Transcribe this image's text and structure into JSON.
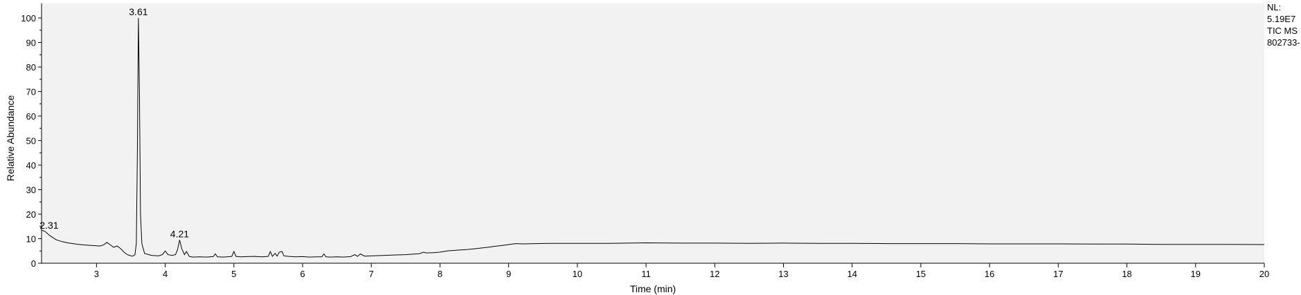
{
  "chart_data": {
    "type": "line",
    "xlabel": "Time (min)",
    "ylabel": "Relative Abundance",
    "xlim": [
      2.2,
      20
    ],
    "ylim": [
      0,
      100
    ],
    "x_ticks": [
      3,
      4,
      5,
      6,
      7,
      8,
      9,
      10,
      11,
      12,
      13,
      14,
      15,
      16,
      17,
      18,
      19,
      20
    ],
    "y_ticks": [
      0,
      10,
      20,
      30,
      40,
      50,
      60,
      70,
      80,
      90,
      100
    ],
    "grid": false,
    "series": [
      {
        "x": [
          2.2,
          2.25,
          2.31,
          2.36,
          2.42,
          2.5,
          2.6,
          2.7,
          2.8,
          2.9,
          3.0,
          3.05,
          3.1,
          3.15,
          3.2,
          3.25,
          3.3,
          3.35,
          3.4,
          3.45,
          3.5,
          3.53,
          3.56,
          3.58,
          3.595,
          3.61,
          3.625,
          3.64,
          3.66,
          3.7,
          3.8,
          3.9,
          3.96,
          4.0,
          4.04,
          4.1,
          4.15,
          4.18,
          4.21,
          4.24,
          4.28,
          4.31,
          4.35,
          4.4,
          4.5,
          4.6,
          4.7,
          4.73,
          4.76,
          4.85,
          4.97,
          5.0,
          5.03,
          5.1,
          5.2,
          5.3,
          5.4,
          5.5,
          5.53,
          5.56,
          5.6,
          5.63,
          5.66,
          5.7,
          5.73,
          5.8,
          5.9,
          6.0,
          6.1,
          6.2,
          6.28,
          6.31,
          6.34,
          6.4,
          6.5,
          6.6,
          6.7,
          6.76,
          6.8,
          6.84,
          6.9,
          7.0,
          7.1,
          7.2,
          7.3,
          7.4,
          7.5,
          7.6,
          7.7,
          7.76,
          7.8,
          7.9,
          8.0,
          8.1,
          8.2,
          8.3,
          8.4,
          8.5,
          8.6,
          8.7,
          8.8,
          8.9,
          9.0,
          9.1,
          9.2,
          9.4,
          9.6,
          10.0,
          10.5,
          11.0,
          11.5,
          12.0,
          12.5,
          13.0,
          13.5,
          14.0,
          14.5,
          15.0,
          15.5,
          16.0,
          16.5,
          17.0,
          17.5,
          18.0,
          18.5,
          19.0,
          19.5,
          20.0
        ],
        "values": [
          13.5,
          13.0,
          11.5,
          10.5,
          9.5,
          8.8,
          8.2,
          7.8,
          7.5,
          7.3,
          7.1,
          7.0,
          7.4,
          8.5,
          7.5,
          6.5,
          7.0,
          6.0,
          4.5,
          3.5,
          3.0,
          2.9,
          3.5,
          8.0,
          45.0,
          100.0,
          70.0,
          20.0,
          8.0,
          4.0,
          3.2,
          3.0,
          3.5,
          5.0,
          3.5,
          3.2,
          3.5,
          5.5,
          9.5,
          6.0,
          3.5,
          4.8,
          2.8,
          2.5,
          2.6,
          2.5,
          2.7,
          3.8,
          2.6,
          2.5,
          2.8,
          4.8,
          2.8,
          2.6,
          2.7,
          2.8,
          2.6,
          2.8,
          4.8,
          2.8,
          4.0,
          2.9,
          4.5,
          4.8,
          3.0,
          2.8,
          2.6,
          2.7,
          2.5,
          2.6,
          2.6,
          3.8,
          2.6,
          2.5,
          2.6,
          2.5,
          2.7,
          3.5,
          2.8,
          3.8,
          2.9,
          3.0,
          3.1,
          3.2,
          3.3,
          3.4,
          3.5,
          3.7,
          3.9,
          4.5,
          4.2,
          4.3,
          4.5,
          5.0,
          5.2,
          5.4,
          5.6,
          5.9,
          6.2,
          6.5,
          6.9,
          7.2,
          7.6,
          8.0,
          7.9,
          8.0,
          8.1,
          8.1,
          8.1,
          8.3,
          8.2,
          8.2,
          8.1,
          8.2,
          8.1,
          8.1,
          8.0,
          8.0,
          8.0,
          7.9,
          7.9,
          7.9,
          7.8,
          7.8,
          7.7,
          7.7,
          7.7,
          7.6
        ]
      }
    ],
    "annotations": [
      {
        "x": 2.31,
        "y": 13.0,
        "text": "2.31"
      },
      {
        "x": 3.61,
        "y": 100.0,
        "text": "3.61"
      },
      {
        "x": 4.21,
        "y": 9.5,
        "text": "4.21"
      }
    ]
  },
  "info": {
    "nl_label": "NL:",
    "nl_value": "5.19E7",
    "trace": "TIC MS",
    "file": "802733-"
  }
}
